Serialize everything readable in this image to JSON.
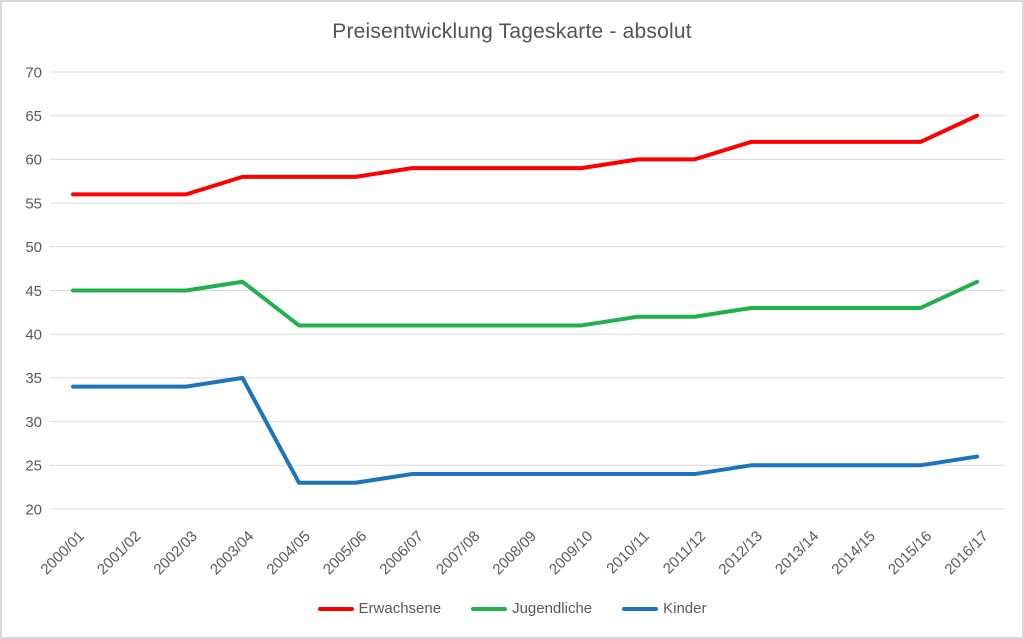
{
  "frame": {
    "background": "#ffffff",
    "border_color": "#d9d9d9"
  },
  "chart_data": {
    "type": "line",
    "title": "Preisentwicklung Tageskarte - absolut",
    "title_color": "#535353",
    "categories": [
      "2000/01",
      "2001/02",
      "2002/03",
      "2003/04",
      "2004/05",
      "2005/06",
      "2006/07",
      "2007/08",
      "2008/09",
      "2009/10",
      "2010/11",
      "2011/12",
      "2012/13",
      "2013/14",
      "2014/15",
      "2015/16",
      "2016/17"
    ],
    "series": [
      {
        "name": "Erwachsene",
        "color": "#ff0000",
        "values": [
          56,
          56,
          56,
          58,
          58,
          58,
          59,
          59,
          59,
          59,
          60,
          60,
          62,
          62,
          62,
          62,
          65
        ]
      },
      {
        "name": "Jugendliche",
        "color": "#21b14c",
        "values": [
          45,
          45,
          45,
          46,
          41,
          41,
          41,
          41,
          41,
          41,
          42,
          42,
          43,
          43,
          43,
          43,
          46
        ]
      },
      {
        "name": "Kinder",
        "color": "#1c75bc",
        "values": [
          34,
          34,
          34,
          35,
          23,
          23,
          24,
          24,
          24,
          24,
          24,
          24,
          25,
          25,
          25,
          25,
          26
        ]
      }
    ],
    "ylim": [
      20,
      70
    ],
    "yticks": [
      70,
      65,
      60,
      55,
      50,
      45,
      40,
      35,
      30,
      25,
      20
    ],
    "xlabel": "",
    "ylabel": "",
    "grid": "horizontal",
    "gridline_color": "#d9d9d9",
    "axis_text_color": "#595959",
    "legend_position": "bottom",
    "line_width": 4
  }
}
